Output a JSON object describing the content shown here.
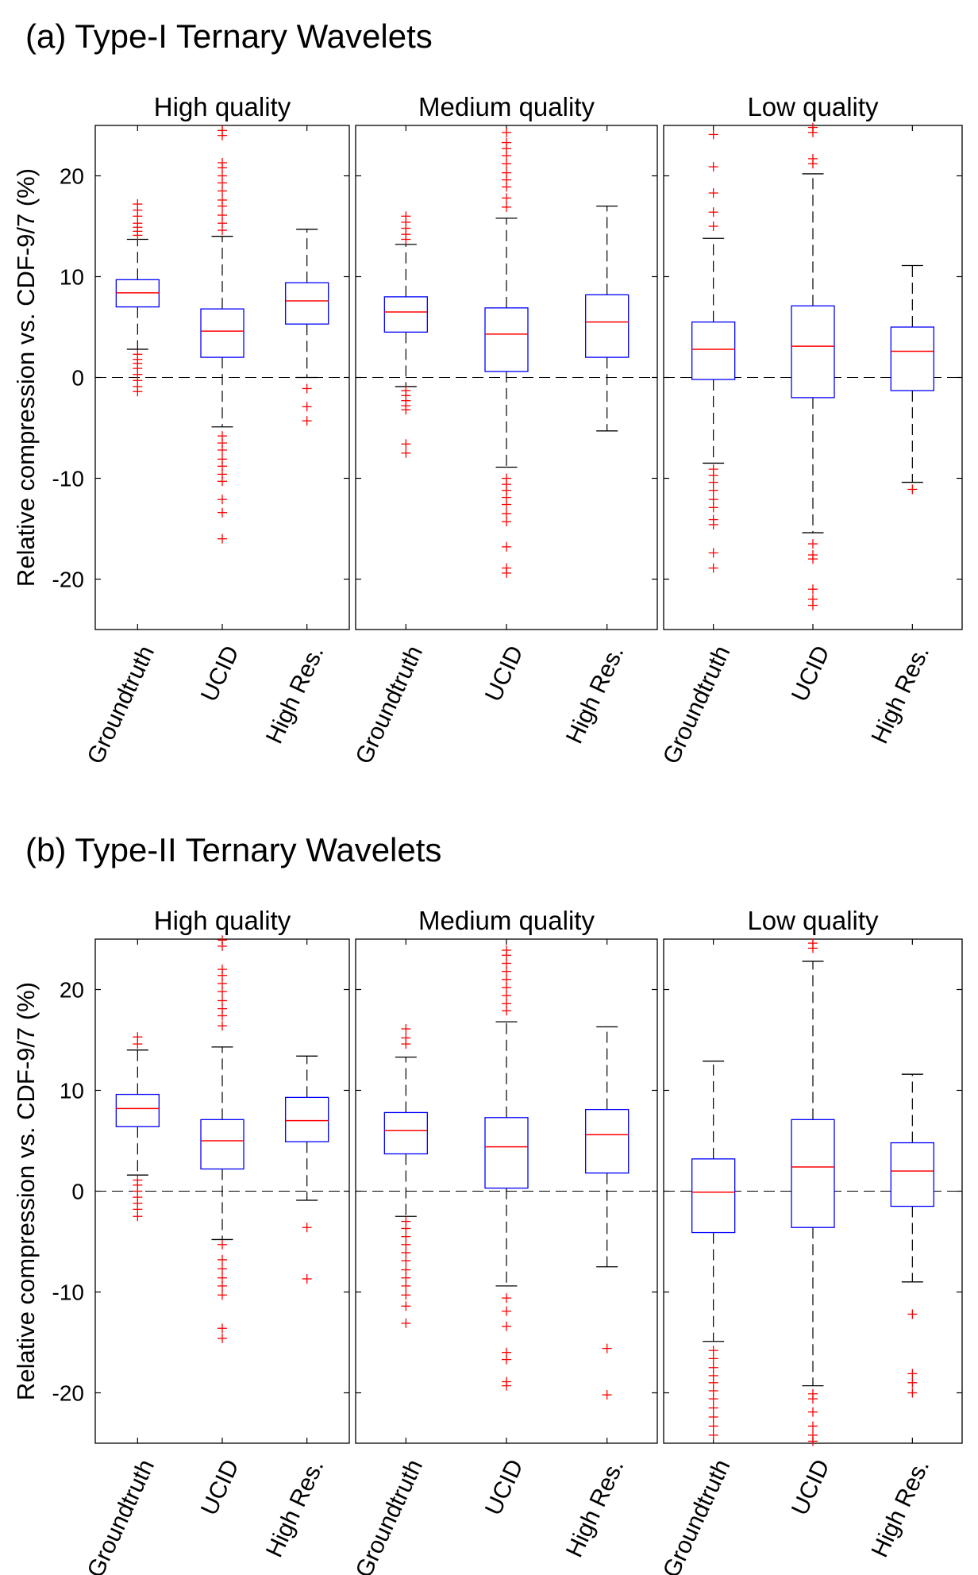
{
  "chart_data": [
    {
      "type": "boxplot",
      "title": "(a) Type-I Ternary Wavelets",
      "ylabel": "Relative compression vs. CDF-9/7 (%)",
      "ylim": [
        -25,
        25
      ],
      "yticks": [
        -20,
        -10,
        0,
        10,
        20
      ],
      "reference_line": 0,
      "categories": [
        "Groundtruth",
        "UCID",
        "High Res."
      ],
      "panels": [
        {
          "title": "High quality",
          "boxes": [
            {
              "q1": 7.0,
              "median": 8.4,
              "q3": 9.7,
              "whisker_low": 2.8,
              "whisker_high": 13.7,
              "outliers": [
                14.1,
                14.5,
                14.9,
                15.3,
                16.0,
                16.6,
                17.2,
                2.3,
                1.8,
                1.4,
                0.9,
                0.3,
                -0.3,
                -0.9,
                -1.4
              ]
            },
            {
              "q1": 2.0,
              "median": 4.6,
              "q3": 6.8,
              "whisker_low": -4.9,
              "whisker_high": 14.0,
              "outliers": [
                14.6,
                15.3,
                16.1,
                17.0,
                17.6,
                18.5,
                19.3,
                20.0,
                20.8,
                21.3,
                24.0,
                24.5,
                -5.8,
                -6.5,
                -7.2,
                -8.1,
                -8.8,
                -9.6,
                -10.3,
                -12.1,
                -13.4,
                -16.0
              ]
            },
            {
              "q1": 5.3,
              "median": 7.6,
              "q3": 9.4,
              "whisker_low": 0.0,
              "whisker_high": 14.7,
              "outliers": [
                -1.1,
                -2.9,
                -4.3
              ]
            }
          ]
        },
        {
          "title": "Medium quality",
          "boxes": [
            {
              "q1": 4.5,
              "median": 6.5,
              "q3": 8.0,
              "whisker_low": -0.9,
              "whisker_high": 13.2,
              "outliers": [
                13.7,
                14.2,
                14.8,
                15.4,
                16.0,
                -1.3,
                -1.8,
                -2.3,
                -2.8,
                -3.2,
                -6.6,
                -7.5
              ]
            },
            {
              "q1": 0.6,
              "median": 4.3,
              "q3": 6.9,
              "whisker_low": -8.9,
              "whisker_high": 15.8,
              "outliers": [
                16.9,
                17.8,
                18.9,
                19.6,
                20.3,
                21.2,
                22.0,
                22.7,
                23.3,
                24.3,
                -10.0,
                -10.6,
                -11.2,
                -11.9,
                -12.6,
                -13.5,
                -14.3,
                -16.8,
                -18.9,
                -19.4
              ]
            },
            {
              "q1": 2.0,
              "median": 5.5,
              "q3": 8.2,
              "whisker_low": -5.3,
              "whisker_high": 17.0,
              "outliers": []
            }
          ]
        },
        {
          "title": "Low quality",
          "boxes": [
            {
              "q1": -0.2,
              "median": 2.8,
              "q3": 5.5,
              "whisker_low": -8.5,
              "whisker_high": 13.8,
              "outliers": [
                15.0,
                16.4,
                18.3,
                20.9,
                24.1,
                -9.1,
                -9.7,
                -10.4,
                -11.2,
                -12.1,
                -12.9,
                -14.1,
                -14.6,
                -17.4,
                -18.9
              ]
            },
            {
              "q1": -2.0,
              "median": 3.1,
              "q3": 7.1,
              "whisker_low": -15.4,
              "whisker_high": 20.2,
              "outliers": [
                21.2,
                21.7,
                24.3,
                24.8,
                -16.5,
                -17.6,
                -18.0,
                -21.0,
                -22.0,
                -22.6
              ]
            },
            {
              "q1": -1.3,
              "median": 2.6,
              "q3": 5.0,
              "whisker_low": -10.4,
              "whisker_high": 11.1,
              "outliers": [
                -11.1
              ]
            }
          ]
        }
      ]
    },
    {
      "type": "boxplot",
      "title": "(b) Type-II Ternary Wavelets",
      "ylabel": "Relative compression vs. CDF-9/7 (%)",
      "ylim": [
        -25,
        25
      ],
      "yticks": [
        -20,
        -10,
        0,
        10,
        20
      ],
      "reference_line": 0,
      "categories": [
        "Groundtruth",
        "UCID",
        "High Res."
      ],
      "panels": [
        {
          "title": "High quality",
          "boxes": [
            {
              "q1": 6.4,
              "median": 8.2,
              "q3": 9.6,
              "whisker_low": 1.6,
              "whisker_high": 14.0,
              "outliers": [
                14.6,
                15.3,
                1.1,
                0.6,
                0.0,
                -0.6,
                -1.2,
                -1.8,
                -2.5
              ]
            },
            {
              "q1": 2.2,
              "median": 5.0,
              "q3": 7.1,
              "whisker_low": -4.8,
              "whisker_high": 14.3,
              "outliers": [
                16.4,
                17.4,
                18.1,
                18.9,
                19.8,
                20.6,
                21.4,
                22.0,
                24.3,
                24.9,
                -5.3,
                -6.8,
                -7.7,
                -8.6,
                -9.4,
                -10.3,
                -13.6,
                -14.6
              ]
            },
            {
              "q1": 4.9,
              "median": 7.0,
              "q3": 9.3,
              "whisker_low": -0.9,
              "whisker_high": 13.4,
              "outliers": [
                -3.6,
                -8.7
              ]
            }
          ]
        },
        {
          "title": "Medium quality",
          "boxes": [
            {
              "q1": 3.7,
              "median": 6.0,
              "q3": 7.8,
              "whisker_low": -2.5,
              "whisker_high": 13.3,
              "outliers": [
                14.6,
                15.2,
                16.1,
                -3.0,
                -3.7,
                -4.5,
                -5.3,
                -6.1,
                -6.9,
                -7.8,
                -8.6,
                -9.4,
                -10.3,
                -11.4,
                -13.1
              ]
            },
            {
              "q1": 0.3,
              "median": 4.4,
              "q3": 7.3,
              "whisker_low": -9.4,
              "whisker_high": 16.8,
              "outliers": [
                17.9,
                18.6,
                19.4,
                20.2,
                21.0,
                21.8,
                22.6,
                23.4,
                23.9,
                -10.6,
                -11.9,
                -13.4,
                -16.0,
                -16.7,
                -18.9,
                -19.3
              ]
            },
            {
              "q1": 1.8,
              "median": 5.6,
              "q3": 8.1,
              "whisker_low": -7.5,
              "whisker_high": 16.3,
              "outliers": [
                -15.6,
                -20.2
              ]
            }
          ]
        },
        {
          "title": "Low quality",
          "boxes": [
            {
              "q1": -4.1,
              "median": -0.1,
              "q3": 3.2,
              "whisker_low": -14.9,
              "whisker_high": 12.9,
              "outliers": [
                -15.8,
                -16.6,
                -17.5,
                -18.3,
                -19.0,
                -19.8,
                -20.6,
                -21.5,
                -22.4,
                -23.3,
                -24.2
              ]
            },
            {
              "q1": -3.6,
              "median": 2.4,
              "q3": 7.1,
              "whisker_low": -19.3,
              "whisker_high": 22.8,
              "outliers": [
                24.1,
                24.6,
                -20.1,
                -20.6,
                -21.9,
                -23.3,
                -24.2,
                -24.8
              ]
            },
            {
              "q1": -1.5,
              "median": 2.0,
              "q3": 4.8,
              "whisker_low": -9.0,
              "whisker_high": 11.6,
              "outliers": [
                -12.2,
                -18.1,
                -19.0,
                -20.0
              ]
            }
          ]
        }
      ]
    }
  ]
}
